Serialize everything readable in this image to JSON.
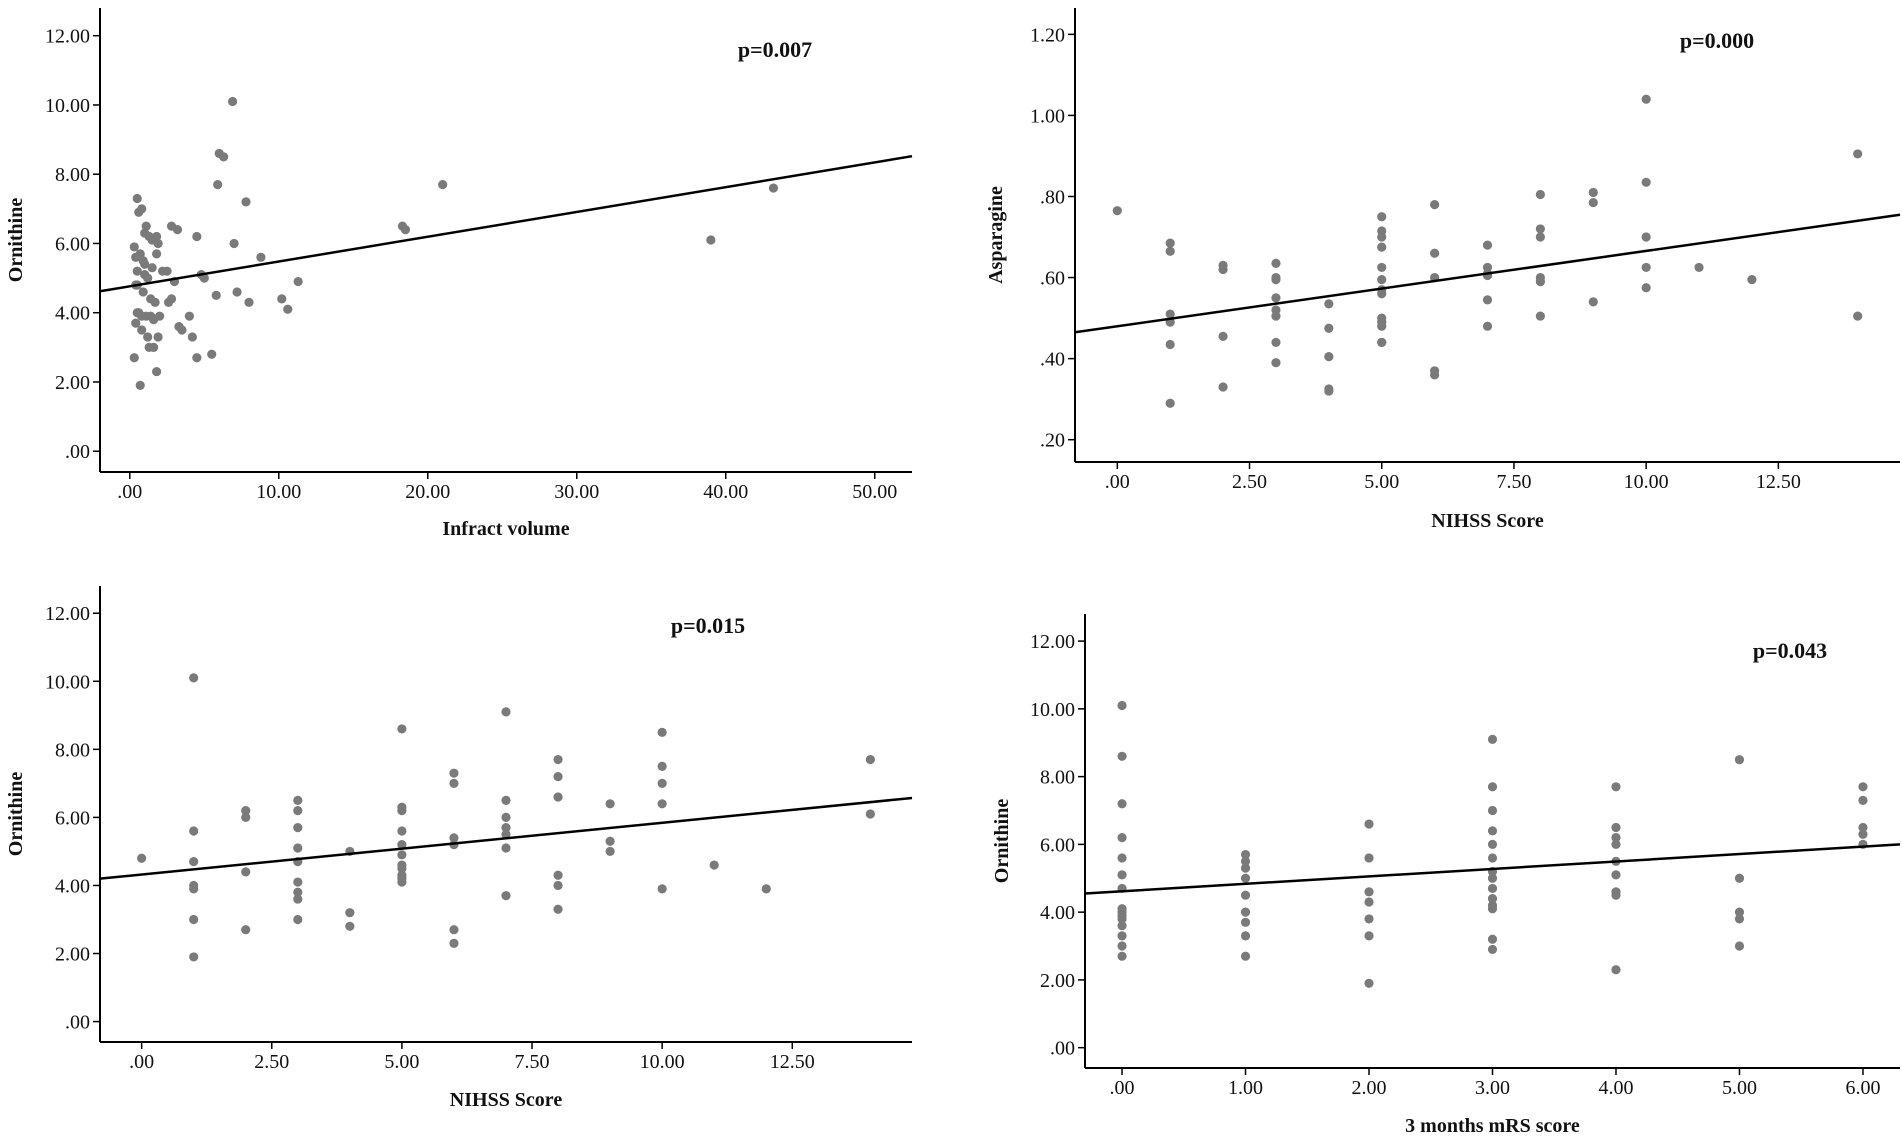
{
  "chart_data": [
    {
      "type": "scatter",
      "xlabel": "Infract volume",
      "ylabel": "Ornithine",
      "annotation": "p=0.007",
      "xlim": [
        -2,
        52.5
      ],
      "ylim": [
        -0.6,
        12.8
      ],
      "xticks": [
        ".00",
        "10.00",
        "20.00",
        "30.00",
        "40.00",
        "50.00"
      ],
      "xtick_values": [
        0,
        10,
        20,
        30,
        40,
        50
      ],
      "yticks": [
        ".00",
        "2.00",
        "4.00",
        "6.00",
        "8.00",
        "10.00",
        "12.00"
      ],
      "ytick_values": [
        0,
        2,
        4,
        6,
        8,
        10,
        12
      ],
      "fit_line": {
        "x": [
          -2,
          52.5
        ],
        "y": [
          4.62,
          8.52
        ]
      },
      "x": [
        0.5,
        0.8,
        1.1,
        0.6,
        1.3,
        0.4,
        0.9,
        1.5,
        1.8,
        0.7,
        1.0,
        1.2,
        0.5,
        0.9,
        1.4,
        1.7,
        0.6,
        1.1,
        1.6,
        2.0,
        0.4,
        0.8,
        1.2,
        1.9,
        0.3,
        0.7,
        1.3,
        1.8,
        0.5,
        1.0,
        1.5,
        2.2,
        2.6,
        3.0,
        3.2,
        2.8,
        1.8,
        2.5,
        3.5,
        4.0,
        4.5,
        4.2,
        5.0,
        4.8,
        0.8,
        1.6,
        0.4,
        1.0,
        1.9,
        3.3,
        4.5,
        5.8,
        6.3,
        6.9,
        7.2,
        8.0,
        8.8,
        10.2,
        10.6,
        11.3,
        5.5,
        6.0,
        7.0,
        7.8,
        5.9,
        18.3,
        18.5,
        21.0,
        39.0,
        43.2,
        0.5,
        0.3,
        1.4,
        2.8
      ],
      "y": [
        7.3,
        7.0,
        6.5,
        6.9,
        6.2,
        5.6,
        5.5,
        6.1,
        6.2,
        5.7,
        5.4,
        5.0,
        4.8,
        4.6,
        4.4,
        4.3,
        4.0,
        3.9,
        3.8,
        3.9,
        3.7,
        3.5,
        3.3,
        3.3,
        2.7,
        1.9,
        3.0,
        2.3,
        5.2,
        5.1,
        5.3,
        5.2,
        4.3,
        4.9,
        6.4,
        6.5,
        5.7,
        5.2,
        3.5,
        3.9,
        2.7,
        3.3,
        5.0,
        5.1,
        3.9,
        3.0,
        4.8,
        6.3,
        6.0,
        3.6,
        6.2,
        4.5,
        8.5,
        10.1,
        4.6,
        4.3,
        5.6,
        4.4,
        4.1,
        4.9,
        2.8,
        8.6,
        6.0,
        7.2,
        7.7,
        6.5,
        6.4,
        7.7,
        6.1,
        7.6,
        4.0,
        5.9,
        3.9,
        4.4
      ]
    },
    {
      "type": "scatter",
      "xlabel": "NIHSS Score",
      "ylabel": "Asparagine",
      "annotation": "p=0.000",
      "xlim": [
        -0.8,
        14.8
      ],
      "ylim": [
        0.145,
        1.265
      ],
      "xticks": [
        ".00",
        "2.50",
        "5.00",
        "7.50",
        "10.00",
        "12.50"
      ],
      "xtick_values": [
        0,
        2.5,
        5,
        7.5,
        10,
        12.5
      ],
      "yticks": [
        ".20",
        ".40",
        ".60",
        ".80",
        "1.00",
        "1.20"
      ],
      "ytick_values": [
        0.2,
        0.4,
        0.6,
        0.8,
        1.0,
        1.2
      ],
      "fit_line": {
        "x": [
          -0.8,
          14.8
        ],
        "y": [
          0.465,
          0.755
        ]
      },
      "x": [
        0,
        1,
        1,
        1,
        1,
        1,
        1,
        2,
        2,
        2,
        2,
        3,
        3,
        3,
        3,
        3,
        3,
        3,
        3,
        4,
        4,
        4,
        4,
        4,
        5,
        5,
        5,
        5,
        5,
        5,
        5,
        5,
        5,
        5,
        5,
        5,
        5,
        6,
        6,
        6,
        6,
        6,
        7,
        7,
        7,
        7,
        7,
        7,
        8,
        8,
        8,
        8,
        8,
        8,
        9,
        9,
        9,
        10,
        10,
        10,
        10,
        10,
        11,
        12,
        14,
        14
      ],
      "y": [
        0.765,
        0.685,
        0.665,
        0.51,
        0.49,
        0.435,
        0.29,
        0.63,
        0.62,
        0.455,
        0.33,
        0.635,
        0.6,
        0.595,
        0.55,
        0.52,
        0.505,
        0.44,
        0.39,
        0.535,
        0.475,
        0.405,
        0.325,
        0.32,
        0.75,
        0.715,
        0.7,
        0.675,
        0.625,
        0.595,
        0.57,
        0.56,
        0.5,
        0.49,
        0.48,
        0.44,
        0.44,
        0.78,
        0.66,
        0.6,
        0.37,
        0.36,
        0.68,
        0.625,
        0.61,
        0.605,
        0.545,
        0.48,
        0.805,
        0.72,
        0.7,
        0.6,
        0.59,
        0.505,
        0.81,
        0.785,
        0.54,
        1.04,
        0.835,
        0.7,
        0.625,
        0.575,
        0.625,
        0.595,
        0.905,
        0.505
      ]
    },
    {
      "type": "scatter",
      "xlabel": "NIHSS Score",
      "ylabel": "Ornithine",
      "annotation": "p=0.015",
      "xlim": [
        -0.8,
        14.8
      ],
      "ylim": [
        -0.6,
        12.8
      ],
      "xticks": [
        ".00",
        "2.50",
        "5.00",
        "7.50",
        "10.00",
        "12.50"
      ],
      "xtick_values": [
        0,
        2.5,
        5,
        7.5,
        10,
        12.5
      ],
      "yticks": [
        ".00",
        "2.00",
        "4.00",
        "6.00",
        "8.00",
        "10.00",
        "12.00"
      ],
      "ytick_values": [
        0,
        2,
        4,
        6,
        8,
        10,
        12
      ],
      "fit_line": {
        "x": [
          -0.8,
          14.8
        ],
        "y": [
          4.2,
          6.57
        ]
      },
      "x": [
        0,
        1,
        1,
        1,
        1,
        1,
        1,
        1,
        2,
        2,
        2,
        2,
        3,
        3,
        3,
        3,
        3,
        3,
        3,
        3,
        3,
        4,
        4,
        4,
        5,
        5,
        5,
        5,
        5,
        5,
        5,
        5,
        5,
        5,
        5,
        6,
        6,
        6,
        6,
        6,
        6,
        7,
        7,
        7,
        7,
        7,
        7,
        7,
        8,
        8,
        8,
        8,
        8,
        8,
        9,
        9,
        9,
        10,
        10,
        10,
        10,
        10,
        11,
        12,
        14,
        14
      ],
      "y": [
        4.8,
        10.1,
        5.6,
        4.7,
        4.0,
        3.9,
        3.0,
        1.9,
        6.2,
        6.0,
        4.4,
        2.7,
        6.5,
        6.2,
        5.7,
        5.1,
        4.7,
        4.1,
        3.8,
        3.6,
        3.0,
        5.0,
        3.2,
        2.8,
        8.6,
        6.3,
        6.2,
        5.6,
        5.2,
        4.9,
        4.6,
        4.5,
        4.3,
        4.2,
        4.1,
        7.3,
        7.0,
        5.4,
        5.2,
        2.7,
        2.3,
        9.1,
        6.5,
        6.0,
        5.7,
        5.5,
        5.1,
        3.7,
        7.7,
        7.2,
        6.6,
        4.3,
        4.0,
        3.3,
        6.4,
        5.3,
        5.0,
        8.5,
        7.5,
        7.0,
        6.4,
        3.9,
        4.6,
        3.9,
        7.7,
        6.1
      ]
    },
    {
      "type": "scatter",
      "xlabel": "3 months mRS score",
      "ylabel": "Ornithine",
      "annotation": "p=0.043",
      "xlim": [
        -0.3,
        6.3
      ],
      "ylim": [
        -0.6,
        12.8
      ],
      "xticks": [
        ".00",
        "1.00",
        "2.00",
        "3.00",
        "4.00",
        "5.00",
        "6.00"
      ],
      "xtick_values": [
        0,
        1,
        2,
        3,
        4,
        5,
        6
      ],
      "yticks": [
        ".00",
        "2.00",
        "4.00",
        "6.00",
        "8.00",
        "10.00",
        "12.00"
      ],
      "ytick_values": [
        0,
        2,
        4,
        6,
        8,
        10,
        12
      ],
      "fit_line": {
        "x": [
          -0.3,
          6.3
        ],
        "y": [
          4.55,
          6.0
        ]
      },
      "x": [
        0,
        0,
        0,
        0,
        0,
        0,
        0,
        0,
        0,
        0,
        0,
        0,
        0,
        0,
        0,
        1,
        1,
        1,
        1,
        1,
        1,
        1,
        1,
        1,
        2,
        2,
        2,
        2,
        2,
        2,
        2,
        3,
        3,
        3,
        3,
        3,
        3,
        3,
        3,
        3,
        3,
        3,
        3,
        3,
        3,
        4,
        4,
        4,
        4,
        4,
        4,
        4,
        4,
        4,
        5,
        5,
        5,
        5,
        5,
        6,
        6,
        6,
        6,
        6
      ],
      "y": [
        10.1,
        8.6,
        7.2,
        6.2,
        5.6,
        5.1,
        4.7,
        4.1,
        3.9,
        3.8,
        3.6,
        3.3,
        3.0,
        2.7,
        4.0,
        5.7,
        5.5,
        5.3,
        5.0,
        4.5,
        4.0,
        3.7,
        3.3,
        2.7,
        6.6,
        5.6,
        4.6,
        4.3,
        3.8,
        3.3,
        1.9,
        9.1,
        7.7,
        7.0,
        6.4,
        6.0,
        5.6,
        5.2,
        5.0,
        4.7,
        4.4,
        4.2,
        4.1,
        3.2,
        2.9,
        7.7,
        6.5,
        6.2,
        6.0,
        5.5,
        5.1,
        4.6,
        4.5,
        2.3,
        8.5,
        5.0,
        4.0,
        3.8,
        3.0,
        7.7,
        7.3,
        6.5,
        6.3,
        6.0
      ]
    }
  ]
}
